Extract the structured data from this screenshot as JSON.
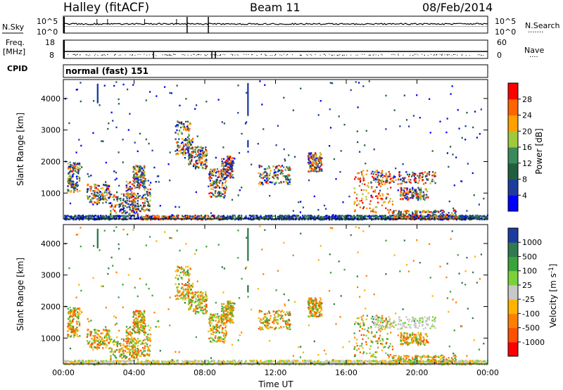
{
  "header": {
    "station": "Halley (fitACF)",
    "beam": "Beam 11",
    "date": "08/Feb/2014"
  },
  "colors": {
    "power": [
      "#0000ff",
      "#1e3ca0",
      "#1f5f3f",
      "#3a8a5a",
      "#a0c83c",
      "#ffa000",
      "#ff6400",
      "#ff0000"
    ],
    "velocity": [
      "#1e3ca0",
      "#2f7a4f",
      "#3aa33a",
      "#7ad13a",
      "#c8c8c8",
      "#ffb400",
      "#ff8000",
      "#ff5000",
      "#ff0000"
    ]
  },
  "chart_data": [
    {
      "type": "line",
      "name": "nsky-nsearch",
      "left_label": "N.Sky",
      "right_label": "N.Search",
      "left_ticks": [
        "10^5",
        "10^0"
      ],
      "right_ticks": [
        "10^5",
        "10^0"
      ],
      "right_legend": "·······"
    },
    {
      "type": "line",
      "name": "freq-nave",
      "left_label_top": "Freq.",
      "left_label_bottom": "[MHz]",
      "right_label": "Nave",
      "left_ticks": [
        "18",
        "8"
      ],
      "right_ticks": [
        "60",
        "0"
      ],
      "right_legend": "····",
      "ylim": [
        8,
        18
      ]
    },
    {
      "type": "table",
      "name": "cpid",
      "label": "CPID",
      "text": "normal (fast) 151"
    },
    {
      "type": "heatmap",
      "name": "power",
      "ylabel": "Slant Range [km]",
      "yticks": [
        1000,
        2000,
        3000,
        4000
      ],
      "ylim": [
        180,
        4600
      ],
      "xlim": [
        0,
        24
      ],
      "colorbar": {
        "label": "Power [dB]",
        "ticks": [
          "4",
          "8",
          "12",
          "16",
          "20",
          "24",
          "28"
        ],
        "range": [
          0,
          32
        ]
      }
    },
    {
      "type": "heatmap",
      "name": "velocity",
      "ylabel": "Slant Range [km]",
      "yticks": [
        1000,
        2000,
        3000,
        4000
      ],
      "ylim": [
        180,
        4600
      ],
      "xlim": [
        0,
        24
      ],
      "xlabel": "Time UT",
      "xticks": [
        "00:00",
        "04:00",
        "08:00",
        "12:00",
        "16:00",
        "20:00",
        "00:00"
      ],
      "colorbar": {
        "label": "Velocity [m s^-1]",
        "ticks": [
          "1000",
          "500",
          "100",
          "25",
          "-25",
          "-100",
          "-500",
          "-1000"
        ]
      }
    }
  ],
  "features": [
    {
      "band": "ground",
      "t0": 0,
      "t1": 24,
      "r0": 180,
      "r1": 320
    },
    {
      "t0": 0.2,
      "t1": 0.9,
      "r0": 1050,
      "r1": 2000
    },
    {
      "t0": 1.3,
      "t1": 2.6,
      "r0": 700,
      "r1": 1300
    },
    {
      "t0": 2.6,
      "t1": 4.2,
      "r0": 350,
      "r1": 1000
    },
    {
      "t0": 3.5,
      "t1": 4.9,
      "r0": 450,
      "r1": 1450
    },
    {
      "t0": 3.9,
      "t1": 4.6,
      "r0": 1200,
      "r1": 1900
    },
    {
      "t0": 6.3,
      "t1": 7.3,
      "r0": 2200,
      "r1": 3300
    },
    {
      "t0": 7.0,
      "t1": 8.1,
      "r0": 1800,
      "r1": 2500
    },
    {
      "t0": 8.2,
      "t1": 9.2,
      "r0": 900,
      "r1": 1800
    },
    {
      "t0": 8.9,
      "t1": 9.6,
      "r0": 1500,
      "r1": 2200
    },
    {
      "t0": 11.0,
      "t1": 12.8,
      "r0": 1300,
      "r1": 1900
    },
    {
      "t0": 13.8,
      "t1": 14.6,
      "r0": 1700,
      "r1": 2300
    },
    {
      "t0": 16.4,
      "t1": 18.6,
      "r0": 400,
      "r1": 1750
    },
    {
      "t0": 17.5,
      "t1": 21.0,
      "r0": 1300,
      "r1": 1700
    },
    {
      "t0": 19.0,
      "t1": 20.6,
      "r0": 800,
      "r1": 1200
    },
    {
      "t0": 18.5,
      "t1": 22.2,
      "r0": 250,
      "r1": 480
    }
  ]
}
